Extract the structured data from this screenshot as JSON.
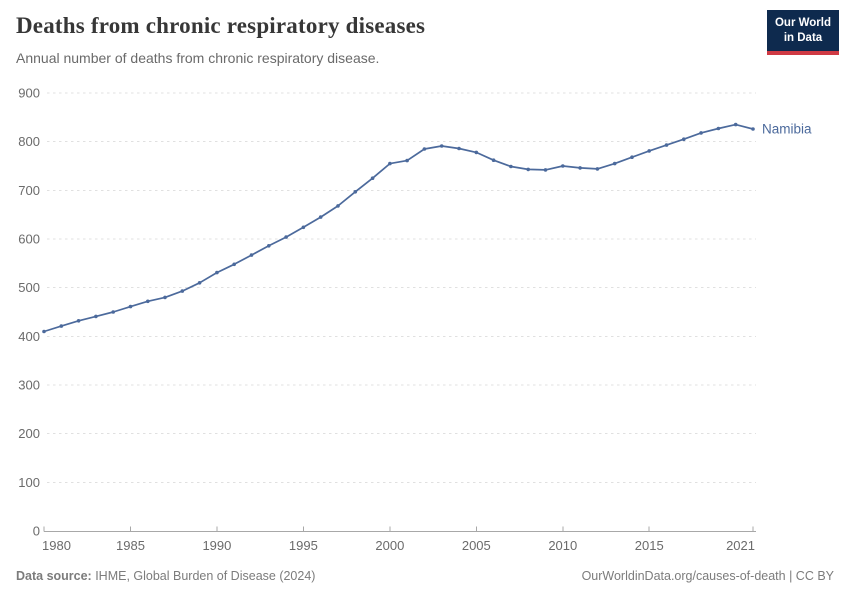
{
  "header": {
    "title": "Deaths from chronic respiratory diseases",
    "subtitle": "Annual number of deaths from chronic respiratory disease.",
    "logo": {
      "line1": "Our World",
      "line2": "in Data"
    }
  },
  "chart_data": {
    "type": "line",
    "title": "Deaths from chronic respiratory diseases",
    "xlabel": "",
    "ylabel": "",
    "x": [
      1980,
      1981,
      1982,
      1983,
      1984,
      1985,
      1986,
      1987,
      1988,
      1989,
      1990,
      1991,
      1992,
      1993,
      1994,
      1995,
      1996,
      1997,
      1998,
      1999,
      2000,
      2001,
      2002,
      2003,
      2004,
      2005,
      2006,
      2007,
      2008,
      2009,
      2010,
      2011,
      2012,
      2013,
      2014,
      2015,
      2016,
      2017,
      2018,
      2019,
      2020,
      2021
    ],
    "series": [
      {
        "name": "Namibia",
        "color": "#4c6a9c",
        "values": [
          410,
          421,
          432,
          441,
          450,
          461,
          472,
          480,
          493,
          510,
          531,
          548,
          567,
          586,
          604,
          624,
          645,
          668,
          697,
          725,
          755,
          761,
          785,
          791,
          786,
          778,
          762,
          749,
          743,
          742,
          750,
          746,
          744,
          755,
          768,
          781,
          793,
          805,
          818,
          827,
          835,
          826
        ]
      }
    ],
    "ylim": [
      0,
      900
    ],
    "xlim": [
      1980,
      2021
    ],
    "y_ticks": [
      0,
      100,
      200,
      300,
      400,
      500,
      600,
      700,
      800,
      900
    ],
    "x_tick_labels": [
      "1980",
      "1985",
      "1990",
      "1995",
      "2000",
      "2005",
      "2010",
      "2015",
      "2021"
    ],
    "grid": "horizontal-dashed",
    "legend": "line-end-label",
    "end_label": "Namibia"
  },
  "footer": {
    "source_label": "Data source:",
    "source_text": " IHME, Global Burden of Disease (2024)",
    "link_text": "OurWorldinData.org/causes-of-death | CC BY"
  },
  "colors": {
    "line": "#4c6a9c",
    "grid": "#e0e0e0",
    "axis": "#a8a8a8",
    "tick_label": "#6b6b6b",
    "title": "#373737",
    "subtitle": "#6a6a6a",
    "footer": "#7c7c7c",
    "logo_bg": "#0e2a4e",
    "logo_accent": "#cf3a44"
  }
}
